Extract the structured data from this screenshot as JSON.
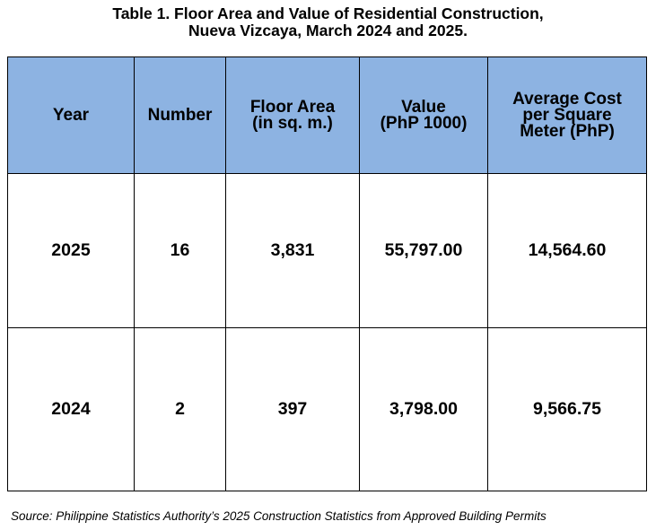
{
  "title": {
    "line1": "Table 1. Floor Area and Value of Residential Construction,",
    "line2": "Nueva Vizcaya, March 2024 and 2025."
  },
  "table": {
    "headers": {
      "year": "Year",
      "number": "Number",
      "floor_area": [
        "Floor Area",
        "(in sq. m.)"
      ],
      "value": [
        "Value",
        "(PhP 1000)"
      ],
      "avg_cost": [
        "Average Cost",
        "per Square",
        "Meter (PhP)"
      ]
    },
    "rows": [
      {
        "year": "2025",
        "number": "16",
        "floor_area": "3,831",
        "value": "55,797.00",
        "avg_cost": "14,564.60"
      },
      {
        "year": "2024",
        "number": "2",
        "floor_area": "397",
        "value": "3,798.00",
        "avg_cost": "9,566.75"
      }
    ]
  },
  "source": "Source: Philippine Statistics Authority’s 2025 Construction Statistics from Approved Building Permits",
  "colors": {
    "header_background": "#8db3e2",
    "border": "#000000"
  }
}
